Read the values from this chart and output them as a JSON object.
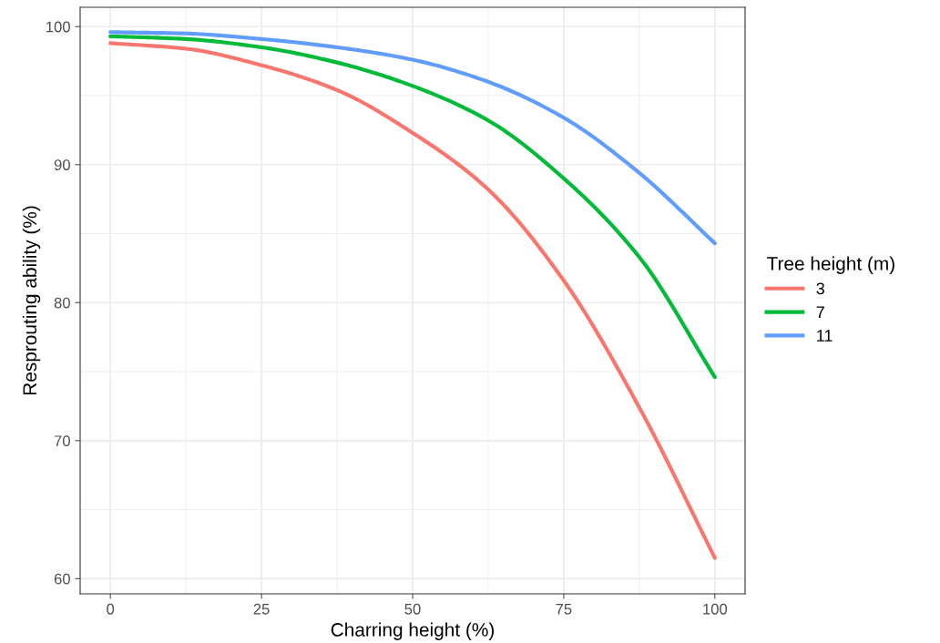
{
  "chart_data": {
    "type": "line",
    "xlabel": "Charring height (%)",
    "ylabel": "Resprouting ability (%)",
    "legend_title": "Tree height (m)",
    "x": [
      0,
      12.5,
      25,
      37.5,
      50,
      62.5,
      75,
      87.5,
      100
    ],
    "series": [
      {
        "name": "3",
        "color": "#f8766d",
        "values": [
          98.8,
          98.4,
          97.2,
          95.4,
          92.3,
          88.2,
          81.6,
          72.4,
          61.5
        ]
      },
      {
        "name": "7",
        "color": "#00ba38",
        "values": [
          99.3,
          99.1,
          98.5,
          97.4,
          95.7,
          93.2,
          89.0,
          83.3,
          74.6
        ]
      },
      {
        "name": "11",
        "color": "#619cff",
        "values": [
          99.6,
          99.5,
          99.1,
          98.5,
          97.6,
          96.0,
          93.4,
          89.4,
          84.3
        ]
      }
    ],
    "xlim": [
      -5,
      105
    ],
    "ylim": [
      58.9,
      101.4
    ],
    "xticks": [
      0,
      25,
      50,
      75,
      100
    ],
    "yticks": [
      60,
      70,
      80,
      90,
      100
    ],
    "grid": true,
    "legend": "right",
    "marker": "none",
    "line_style": "solid"
  }
}
